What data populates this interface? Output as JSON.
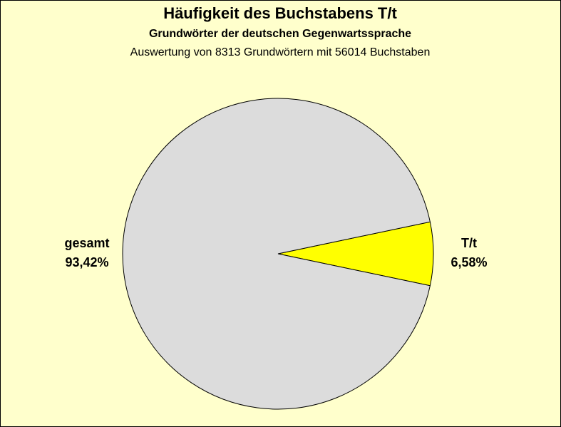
{
  "chart_data": {
    "type": "pie",
    "title": "Häufigkeit des Buchstabens T/t",
    "subtitle": "Grundwörter der deutschen Gegenwartssprache",
    "caption": "Auswertung von 8313 Grundwörtern mit 56014 Buchstaben",
    "categories": [
      "T/t",
      "gesamt"
    ],
    "values": [
      6.58,
      93.42
    ],
    "value_labels": [
      "6,58%",
      "93,42%"
    ],
    "colors": [
      "#ffff00",
      "#dcdcdc"
    ]
  }
}
